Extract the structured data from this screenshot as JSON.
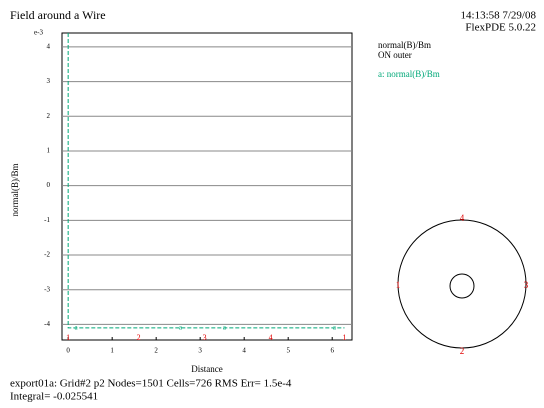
{
  "chart_data": {
    "type": "line",
    "title": "Field around a Wire",
    "timestamp": "14:13:58 7/29/08",
    "software": "FlexPDE 5.0.22",
    "y_multiplier": "e-3",
    "y_label": "normal(B)/Bm",
    "x_label": "Distance",
    "legend_heading": [
      "normal(B)/Bm",
      "ON outer"
    ],
    "x": [
      0,
      0,
      0.18,
      2.55,
      3.55,
      6.05,
      6.28
    ],
    "series": [
      {
        "name": "a: normal(B)/Bm",
        "marker": "a",
        "color": "#00a878",
        "values": [
          4.4,
          -4.1,
          -4.1,
          -4.1,
          -4.1,
          -4.1,
          -4.1
        ]
      }
    ],
    "xlim": [
      -0.14,
      6.45
    ],
    "xticks": [
      0,
      1,
      2,
      3,
      4,
      5,
      6
    ],
    "ylim": [
      -4.45,
      4.4
    ],
    "yticks": [
      4,
      3,
      2,
      1,
      0,
      -1,
      -2,
      -3,
      -4
    ],
    "grid": true,
    "boundary_marks": [
      {
        "label": "1",
        "x": 0
      },
      {
        "label": "2",
        "x": 1.6
      },
      {
        "label": "3",
        "x": 3.1
      },
      {
        "label": "4",
        "x": 4.6
      },
      {
        "label": "1",
        "x": 6.28
      }
    ],
    "domain_labels": [
      "4",
      "1",
      "2",
      "3"
    ],
    "footer": [
      "export01a:  Grid#2  p2  Nodes=1501 Cells=726 RMS Err= 1.5e-4",
      "Integral= -0.025541"
    ]
  }
}
